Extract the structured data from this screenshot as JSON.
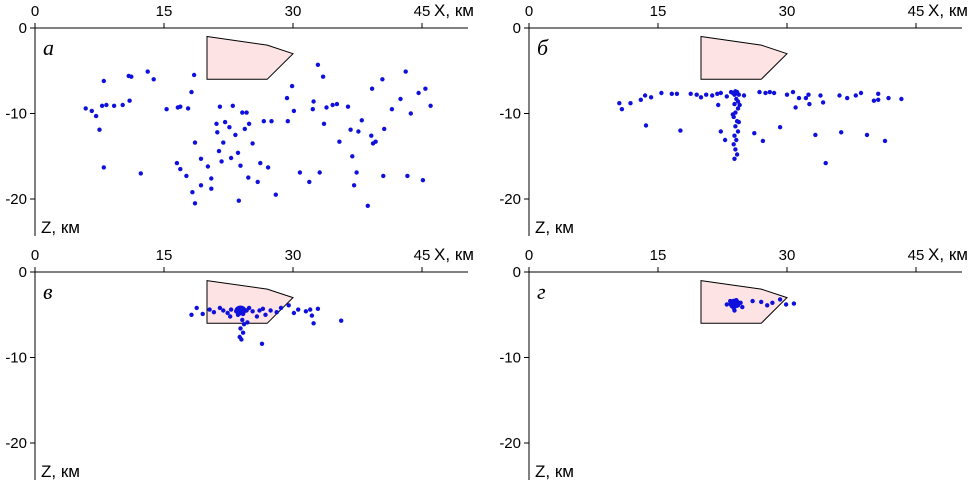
{
  "colors": {
    "point": "#1010dd",
    "body_fill": "#fde3e3",
    "body_stroke": "#000000",
    "axis": "#000000"
  },
  "chart_data": [
    {
      "type": "scatter",
      "panel_label": "а",
      "xlabel": "X, км",
      "ylabel": "Z, км",
      "xlim": [
        0,
        50
      ],
      "ylim": [
        -24,
        0
      ],
      "x_ticks": [
        0,
        15,
        30,
        45
      ],
      "y_ticks": [
        0,
        -10,
        -20
      ],
      "body_polygon": [
        [
          20,
          -1
        ],
        [
          27,
          -2
        ],
        [
          30,
          -3
        ],
        [
          27,
          -6
        ],
        [
          20,
          -6
        ]
      ],
      "points": [
        [
          5.9,
          -9.4
        ],
        [
          6.6,
          -9.7
        ],
        [
          7.1,
          -10.3
        ],
        [
          7.5,
          -11.9
        ],
        [
          8.0,
          -6.2
        ],
        [
          7.8,
          -9.1
        ],
        [
          8.3,
          -9.0
        ],
        [
          8.0,
          -16.3
        ],
        [
          9.2,
          -9.1
        ],
        [
          10.2,
          -9.0
        ],
        [
          10.9,
          -5.6
        ],
        [
          11.2,
          -5.7
        ],
        [
          11.0,
          -8.5
        ],
        [
          12.3,
          -17.0
        ],
        [
          13.1,
          -5.1
        ],
        [
          13.8,
          -6.0
        ],
        [
          15.3,
          -9.5
        ],
        [
          16.6,
          -9.3
        ],
        [
          16.9,
          -9.2
        ],
        [
          16.5,
          -15.8
        ],
        [
          16.9,
          -16.5
        ],
        [
          17.6,
          -17.3
        ],
        [
          17.8,
          -9.4
        ],
        [
          18.5,
          -5.5
        ],
        [
          18.2,
          -7.5
        ],
        [
          18.6,
          -13.4
        ],
        [
          18.3,
          -19.2
        ],
        [
          18.6,
          -20.5
        ],
        [
          19.3,
          -18.4
        ],
        [
          19.3,
          -15.3
        ],
        [
          20.1,
          -16.2
        ],
        [
          20.5,
          -17.6
        ],
        [
          20.5,
          -18.8
        ],
        [
          21.1,
          -11.2
        ],
        [
          21.2,
          -12.2
        ],
        [
          21.5,
          -9.2
        ],
        [
          21.9,
          -13.4
        ],
        [
          21.4,
          -14.4
        ],
        [
          21.7,
          -15.6
        ],
        [
          22.1,
          -11.0
        ],
        [
          22.6,
          -11.6
        ],
        [
          23.0,
          -9.1
        ],
        [
          22.8,
          -15.2
        ],
        [
          23.3,
          -12.5
        ],
        [
          23.6,
          -14.6
        ],
        [
          23.9,
          -16.1
        ],
        [
          23.7,
          -20.2
        ],
        [
          24.1,
          -9.9
        ],
        [
          24.6,
          -9.9
        ],
        [
          24.4,
          -11.8
        ],
        [
          24.9,
          -11.2
        ],
        [
          25.3,
          -13.5
        ],
        [
          25.9,
          -18.0
        ],
        [
          24.8,
          -17.5
        ],
        [
          26.6,
          -10.9
        ],
        [
          26.2,
          -15.8
        ],
        [
          27.1,
          -16.3
        ],
        [
          27.5,
          -10.9
        ],
        [
          28.0,
          -19.5
        ],
        [
          29.4,
          -10.9
        ],
        [
          29.3,
          -8.2
        ],
        [
          29.9,
          -6.8
        ],
        [
          30.1,
          -9.7
        ],
        [
          30.8,
          -16.9
        ],
        [
          31.9,
          -18.0
        ],
        [
          32.3,
          -9.5
        ],
        [
          32.4,
          -8.6
        ],
        [
          32.9,
          -4.3
        ],
        [
          33.1,
          -16.9
        ],
        [
          33.5,
          -5.7
        ],
        [
          33.9,
          -9.3
        ],
        [
          33.6,
          -11.2
        ],
        [
          34.6,
          -9.0
        ],
        [
          35.1,
          -8.9
        ],
        [
          35.4,
          -13.3
        ],
        [
          36.4,
          -9.2
        ],
        [
          36.7,
          -11.9
        ],
        [
          36.9,
          -15.0
        ],
        [
          37.1,
          -18.4
        ],
        [
          37.4,
          -16.9
        ],
        [
          37.6,
          -12.1
        ],
        [
          38.0,
          -10.8
        ],
        [
          38.7,
          -20.8
        ],
        [
          39.1,
          -12.6
        ],
        [
          39.2,
          -7.1
        ],
        [
          39.6,
          -13.3
        ],
        [
          39.3,
          -13.5
        ],
        [
          40.6,
          -11.8
        ],
        [
          40.5,
          -17.3
        ],
        [
          40.4,
          -6.0
        ],
        [
          41.5,
          -9.5
        ],
        [
          42.5,
          -8.3
        ],
        [
          43.1,
          -5.1
        ],
        [
          43.7,
          -10.0
        ],
        [
          43.3,
          -17.3
        ],
        [
          44.6,
          -7.6
        ],
        [
          45.4,
          -7.1
        ],
        [
          45.1,
          -17.8
        ],
        [
          46.0,
          -9.1
        ]
      ]
    },
    {
      "type": "scatter",
      "panel_label": "б",
      "xlabel": "X, км",
      "ylabel": "Z, км",
      "xlim": [
        0,
        50
      ],
      "ylim": [
        -24,
        0
      ],
      "x_ticks": [
        0,
        15,
        30,
        45
      ],
      "y_ticks": [
        0,
        -10,
        -20
      ],
      "body_polygon": [
        [
          20,
          -1
        ],
        [
          27,
          -2
        ],
        [
          30,
          -3
        ],
        [
          27,
          -6
        ],
        [
          20,
          -6
        ]
      ],
      "points": [
        [
          10.5,
          -8.8
        ],
        [
          10.8,
          -9.5
        ],
        [
          11.8,
          -8.8
        ],
        [
          13.0,
          -8.4
        ],
        [
          13.5,
          -7.9
        ],
        [
          13.6,
          -11.4
        ],
        [
          14.2,
          -8.1
        ],
        [
          15.4,
          -7.6
        ],
        [
          16.6,
          -7.7
        ],
        [
          17.2,
          -7.7
        ],
        [
          17.6,
          -12.0
        ],
        [
          18.8,
          -7.7
        ],
        [
          19.5,
          -7.8
        ],
        [
          20.0,
          -8.1
        ],
        [
          20.6,
          -7.8
        ],
        [
          21.3,
          -7.9
        ],
        [
          21.9,
          -7.7
        ],
        [
          22.0,
          -9.0
        ],
        [
          22.3,
          -7.6
        ],
        [
          22.3,
          -12.1
        ],
        [
          22.8,
          -13.1
        ],
        [
          23.0,
          -8.0
        ],
        [
          23.5,
          -7.5
        ],
        [
          23.7,
          -7.6
        ],
        [
          23.9,
          -7.8
        ],
        [
          24.0,
          -7.4
        ],
        [
          24.2,
          -7.6
        ],
        [
          24.4,
          -7.8
        ],
        [
          24.1,
          -8.3
        ],
        [
          23.9,
          -8.9
        ],
        [
          24.3,
          -9.4
        ],
        [
          24.0,
          -9.9
        ],
        [
          23.8,
          -10.4
        ],
        [
          24.2,
          -10.9
        ],
        [
          24.0,
          -11.5
        ],
        [
          24.3,
          -12.1
        ],
        [
          23.9,
          -12.6
        ],
        [
          24.1,
          -13.1
        ],
        [
          23.8,
          -13.6
        ],
        [
          24.0,
          -14.2
        ],
        [
          24.2,
          -14.8
        ],
        [
          23.9,
          -15.3
        ],
        [
          24.4,
          -11.0
        ],
        [
          24.2,
          -7.5
        ],
        [
          24.3,
          -8.6
        ],
        [
          23.7,
          -10.1
        ],
        [
          24.5,
          -9.0
        ],
        [
          25.0,
          -7.9
        ],
        [
          26.2,
          -12.3
        ],
        [
          26.8,
          -7.5
        ],
        [
          27.2,
          -13.2
        ],
        [
          27.5,
          -7.6
        ],
        [
          28.0,
          -7.5
        ],
        [
          28.5,
          -7.6
        ],
        [
          29.2,
          -11.6
        ],
        [
          30.0,
          -7.8
        ],
        [
          30.7,
          -7.5
        ],
        [
          31.0,
          -9.3
        ],
        [
          31.4,
          -8.2
        ],
        [
          32.2,
          -8.2
        ],
        [
          32.5,
          -7.8
        ],
        [
          32.6,
          -8.9
        ],
        [
          33.3,
          -12.5
        ],
        [
          33.9,
          -7.9
        ],
        [
          34.2,
          -8.7
        ],
        [
          34.5,
          -15.8
        ],
        [
          36.1,
          -7.9
        ],
        [
          36.3,
          -12.2
        ],
        [
          37.0,
          -8.2
        ],
        [
          38.0,
          -7.9
        ],
        [
          38.6,
          -7.6
        ],
        [
          39.3,
          -12.5
        ],
        [
          40.1,
          -8.5
        ],
        [
          40.6,
          -7.7
        ],
        [
          40.6,
          -8.4
        ],
        [
          41.4,
          -13.2
        ],
        [
          41.8,
          -8.2
        ],
        [
          43.3,
          -8.3
        ]
      ]
    },
    {
      "type": "scatter",
      "panel_label": "в",
      "xlabel": "X, км",
      "ylabel": "Z, км",
      "xlim": [
        0,
        50
      ],
      "ylim": [
        -24,
        0
      ],
      "x_ticks": [
        0,
        15,
        30,
        45
      ],
      "y_ticks": [
        0,
        -10,
        -20
      ],
      "body_polygon": [
        [
          20,
          -1
        ],
        [
          27,
          -2
        ],
        [
          30,
          -3
        ],
        [
          27,
          -6
        ],
        [
          20,
          -6
        ]
      ],
      "points": [
        [
          18.2,
          -5.0
        ],
        [
          18.8,
          -4.2
        ],
        [
          19.5,
          -4.9
        ],
        [
          20.3,
          -4.4
        ],
        [
          20.8,
          -4.7
        ],
        [
          21.5,
          -4.2
        ],
        [
          21.9,
          -4.5
        ],
        [
          22.4,
          -4.8
        ],
        [
          22.8,
          -4.4
        ],
        [
          23.4,
          -4.6
        ],
        [
          23.6,
          -5.0
        ],
        [
          23.8,
          -4.3
        ],
        [
          24.0,
          -4.6
        ],
        [
          24.2,
          -4.9
        ],
        [
          24.6,
          -4.5
        ],
        [
          24.9,
          -4.2
        ],
        [
          24.1,
          -5.6
        ],
        [
          24.3,
          -6.1
        ],
        [
          23.9,
          -6.6
        ],
        [
          24.2,
          -7.1
        ],
        [
          23.8,
          -7.6
        ],
        [
          24.0,
          -7.9
        ],
        [
          22.7,
          -5.2
        ],
        [
          25.3,
          -4.6
        ],
        [
          25.8,
          -5.2
        ],
        [
          26.1,
          -4.5
        ],
        [
          26.5,
          -4.3
        ],
        [
          26.8,
          -5.0
        ],
        [
          27.4,
          -4.5
        ],
        [
          28.1,
          -4.7
        ],
        [
          28.6,
          -4.2
        ],
        [
          29.5,
          -3.9
        ],
        [
          30.1,
          -4.8
        ],
        [
          30.6,
          -4.4
        ],
        [
          31.5,
          -4.6
        ],
        [
          32.0,
          -4.4
        ],
        [
          32.2,
          -5.1
        ],
        [
          32.4,
          -6.0
        ],
        [
          32.9,
          -4.3
        ],
        [
          35.6,
          -5.7
        ],
        [
          26.4,
          -8.4
        ],
        [
          24.7,
          -5.9
        ]
      ],
      "clusters": [
        [
          23.9,
          -4.5
        ]
      ]
    },
    {
      "type": "scatter",
      "panel_label": "г",
      "xlabel": "X, км",
      "ylabel": "Z, км",
      "xlim": [
        0,
        50
      ],
      "ylim": [
        -24,
        0
      ],
      "x_ticks": [
        0,
        15,
        30,
        45
      ],
      "y_ticks": [
        0,
        -10,
        -20
      ],
      "body_polygon": [
        [
          20,
          -1
        ],
        [
          27,
          -2
        ],
        [
          30,
          -3
        ],
        [
          27,
          -6
        ],
        [
          20,
          -6
        ]
      ],
      "points": [
        [
          23.0,
          -3.8
        ],
        [
          23.4,
          -3.4
        ],
        [
          23.6,
          -4.0
        ],
        [
          23.9,
          -4.5
        ],
        [
          24.1,
          -3.3
        ],
        [
          24.3,
          -3.9
        ],
        [
          24.6,
          -3.6
        ],
        [
          23.8,
          -4.2
        ],
        [
          24.8,
          -4.1
        ],
        [
          26.0,
          -3.4
        ],
        [
          27.0,
          -3.5
        ],
        [
          27.7,
          -3.9
        ],
        [
          28.3,
          -3.6
        ],
        [
          29.2,
          -3.2
        ],
        [
          29.9,
          -3.8
        ],
        [
          30.8,
          -3.7
        ]
      ],
      "clusters": [
        [
          23.9,
          -3.7
        ]
      ]
    }
  ]
}
